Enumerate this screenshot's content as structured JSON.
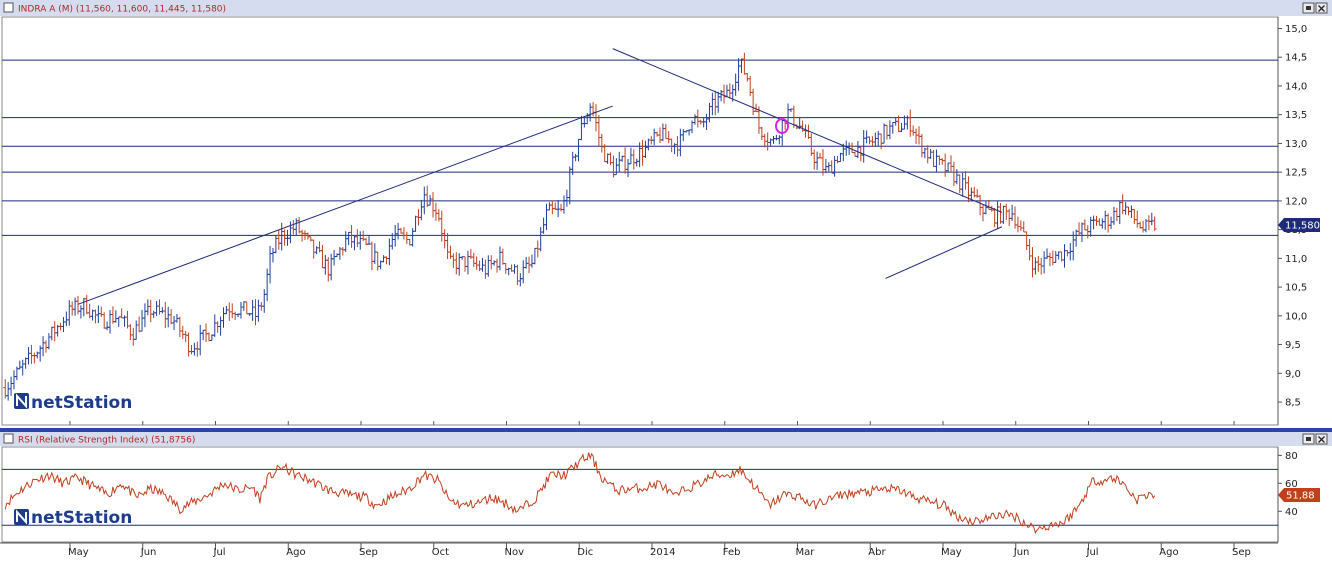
{
  "price_panel": {
    "title": "INDRA A (M) (11,560, 11,600, 11,445, 11,580)",
    "last_value": "11,580",
    "logo_text": "netStation"
  },
  "rsi_panel": {
    "title": "RSI (Relative Strength Index) (51,8756)",
    "last_value": "51,88",
    "logo_text": "netStation"
  },
  "colors": {
    "up_bar": "#1f3fa0",
    "down_bar": "#c0401e",
    "rsi_line": "#c0401e",
    "trendline": "#1e2a7a",
    "titlebar": "#d5dcf0",
    "titlebar_text": "#b0281e",
    "marker": "#e21ee2",
    "tag_bg": "#1e2a7a"
  },
  "chart_data": [
    {
      "type": "ohlc",
      "name": "INDRA A",
      "y_axis": {
        "ylim": [
          8.1,
          15.2
        ],
        "ticks": [
          "8,5",
          "9,0",
          "9,5",
          "10,0",
          "10,5",
          "11,0",
          "11,5",
          "12,0",
          "12,5",
          "13,0",
          "13,5",
          "14,0",
          "14,5",
          "15,0"
        ]
      },
      "x_axis": {
        "labels": [
          "May",
          "Jun",
          "Jul",
          "Ago",
          "Sep",
          "Oct",
          "Nov",
          "Dic",
          "2014",
          "Feb",
          "Mar",
          "Abr",
          "May",
          "Jun",
          "Jul",
          "Ago",
          "Sep"
        ]
      },
      "horizontal_lines": [
        14.45,
        13.45,
        12.95,
        12.5,
        12.0,
        11.4
      ],
      "trendlines": [
        {
          "from": [
            0.0,
            10.2
          ],
          "to": [
            7.35,
            13.65
          ]
        },
        {
          "from": [
            7.35,
            14.65
          ],
          "to": [
            12.7,
            11.8
          ]
        },
        {
          "from": [
            11.1,
            10.65
          ],
          "to": [
            12.7,
            11.55
          ]
        }
      ],
      "anchors": [
        [
          -1.0,
          8.75
        ],
        [
          -0.7,
          9.2
        ],
        [
          -0.35,
          9.7
        ],
        [
          -0.1,
          10.1
        ],
        [
          0.1,
          10.2
        ],
        [
          0.3,
          9.9
        ],
        [
          0.55,
          10.0
        ],
        [
          0.75,
          9.7
        ],
        [
          1.0,
          10.1
        ],
        [
          1.3,
          9.95
        ],
        [
          1.55,
          9.45
        ],
        [
          1.8,
          9.7
        ],
        [
          2.05,
          10.15
        ],
        [
          2.3,
          10.1
        ],
        [
          2.45,
          10.0
        ],
        [
          2.55,
          10.3
        ],
        [
          2.65,
          11.05
        ],
        [
          2.8,
          11.4
        ],
        [
          3.0,
          11.55
        ],
        [
          3.2,
          11.2
        ],
        [
          3.45,
          10.8
        ],
        [
          3.7,
          11.35
        ],
        [
          3.95,
          11.2
        ],
        [
          4.15,
          10.9
        ],
        [
          4.35,
          11.4
        ],
        [
          4.55,
          11.3
        ],
        [
          4.75,
          12.15
        ],
        [
          4.95,
          11.8
        ],
        [
          5.1,
          10.9
        ],
        [
          5.35,
          10.95
        ],
        [
          5.6,
          10.8
        ],
        [
          5.8,
          11.0
        ],
        [
          6.05,
          10.7
        ],
        [
          6.25,
          10.9
        ],
        [
          6.45,
          11.8
        ],
        [
          6.65,
          11.8
        ],
        [
          6.9,
          13.2
        ],
        [
          7.05,
          13.7
        ],
        [
          7.2,
          12.9
        ],
        [
          7.35,
          12.55
        ],
        [
          7.55,
          12.7
        ],
        [
          7.8,
          12.9
        ],
        [
          8.0,
          13.15
        ],
        [
          8.2,
          13.0
        ],
        [
          8.3,
          13.05
        ],
        [
          8.45,
          13.5
        ],
        [
          8.55,
          13.25
        ],
        [
          8.75,
          13.7
        ],
        [
          8.95,
          13.9
        ],
        [
          9.1,
          14.4
        ],
        [
          9.2,
          14.15
        ],
        [
          9.35,
          13.3
        ],
        [
          9.55,
          13.0
        ],
        [
          9.75,
          13.55
        ],
        [
          9.95,
          13.25
        ],
        [
          10.1,
          12.8
        ],
        [
          10.3,
          12.5
        ],
        [
          10.45,
          12.8
        ],
        [
          10.7,
          12.9
        ],
        [
          10.95,
          13.05
        ],
        [
          11.15,
          13.25
        ],
        [
          11.45,
          13.35
        ],
        [
          11.55,
          13.05
        ],
        [
          11.75,
          12.7
        ],
        [
          12.0,
          12.5
        ],
        [
          12.2,
          12.2
        ],
        [
          12.45,
          11.85
        ],
        [
          12.6,
          11.75
        ],
        [
          12.85,
          11.8
        ],
        [
          13.0,
          11.35
        ],
        [
          13.15,
          10.85
        ],
        [
          13.35,
          11.0
        ],
        [
          13.55,
          11.1
        ],
        [
          13.8,
          11.5
        ],
        [
          14.0,
          11.6
        ],
        [
          14.2,
          11.7
        ],
        [
          14.35,
          11.95
        ],
        [
          14.5,
          11.7
        ],
        [
          14.65,
          11.5
        ],
        [
          14.8,
          11.58
        ]
      ],
      "last": 11.58
    },
    {
      "type": "line",
      "name": "RSI",
      "y_axis": {
        "ylim": [
          18,
          86
        ],
        "ticks": [
          "40",
          "60",
          "80"
        ]
      },
      "horizontal_lines": [
        70,
        30
      ],
      "anchors": [
        [
          -1.0,
          45
        ],
        [
          -0.8,
          55
        ],
        [
          -0.6,
          62
        ],
        [
          -0.4,
          66
        ],
        [
          -0.2,
          60
        ],
        [
          0.0,
          64
        ],
        [
          0.2,
          58
        ],
        [
          0.4,
          52
        ],
        [
          0.6,
          60
        ],
        [
          0.8,
          50
        ],
        [
          1.0,
          56
        ],
        [
          1.2,
          52
        ],
        [
          1.4,
          42
        ],
        [
          1.6,
          47
        ],
        [
          1.8,
          52
        ],
        [
          2.0,
          60
        ],
        [
          2.2,
          55
        ],
        [
          2.4,
          57
        ],
        [
          2.5,
          49
        ],
        [
          2.6,
          63
        ],
        [
          2.8,
          72
        ],
        [
          3.0,
          66
        ],
        [
          3.2,
          62
        ],
        [
          3.45,
          55
        ],
        [
          3.7,
          52
        ],
        [
          3.95,
          50
        ],
        [
          4.1,
          44
        ],
        [
          4.3,
          50
        ],
        [
          4.55,
          56
        ],
        [
          4.75,
          66
        ],
        [
          4.95,
          62
        ],
        [
          5.1,
          48
        ],
        [
          5.3,
          44
        ],
        [
          5.5,
          46
        ],
        [
          5.7,
          50
        ],
        [
          5.9,
          45
        ],
        [
          6.05,
          40
        ],
        [
          6.3,
          50
        ],
        [
          6.5,
          66
        ],
        [
          6.7,
          66
        ],
        [
          6.9,
          76
        ],
        [
          7.05,
          80
        ],
        [
          7.2,
          64
        ],
        [
          7.4,
          55
        ],
        [
          7.6,
          56
        ],
        [
          7.8,
          57
        ],
        [
          8.0,
          60
        ],
        [
          8.2,
          50
        ],
        [
          8.35,
          56
        ],
        [
          8.55,
          60
        ],
        [
          8.75,
          66
        ],
        [
          8.95,
          66
        ],
        [
          9.1,
          70
        ],
        [
          9.3,
          58
        ],
        [
          9.5,
          44
        ],
        [
          9.7,
          52
        ],
        [
          9.9,
          51
        ],
        [
          10.1,
          44
        ],
        [
          10.3,
          48
        ],
        [
          10.5,
          52
        ],
        [
          10.7,
          53
        ],
        [
          10.9,
          54
        ],
        [
          11.1,
          56
        ],
        [
          11.3,
          55
        ],
        [
          11.5,
          50
        ],
        [
          11.7,
          47
        ],
        [
          11.9,
          44
        ],
        [
          12.1,
          36
        ],
        [
          12.3,
          33
        ],
        [
          12.5,
          35
        ],
        [
          12.7,
          38
        ],
        [
          12.9,
          36
        ],
        [
          13.05,
          30
        ],
        [
          13.2,
          27
        ],
        [
          13.35,
          30
        ],
        [
          13.55,
          32
        ],
        [
          13.75,
          43
        ],
        [
          13.95,
          62
        ],
        [
          14.1,
          62
        ],
        [
          14.25,
          64
        ],
        [
          14.4,
          58
        ],
        [
          14.55,
          48
        ],
        [
          14.7,
          52
        ],
        [
          14.8,
          51.88
        ]
      ],
      "last": 51.88
    }
  ]
}
